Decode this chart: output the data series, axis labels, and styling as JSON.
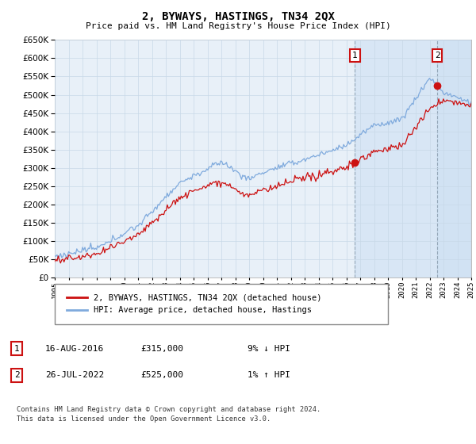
{
  "title": "2, BYWAYS, HASTINGS, TN34 2QX",
  "subtitle": "Price paid vs. HM Land Registry's House Price Index (HPI)",
  "hpi_color": "#7faadd",
  "price_color": "#cc1111",
  "grid_color": "#c8d8e8",
  "bg_color": "#ddeeff",
  "plot_bg": "#e8f0f8",
  "legend_label_price": "2, BYWAYS, HASTINGS, TN34 2QX (detached house)",
  "legend_label_hpi": "HPI: Average price, detached house, Hastings",
  "transaction1_label": "1",
  "transaction1_date": "16-AUG-2016",
  "transaction1_price": "£315,000",
  "transaction1_hpi": "9% ↓ HPI",
  "transaction1_year": 2016.62,
  "transaction1_value": 315000,
  "transaction2_label": "2",
  "transaction2_date": "26-JUL-2022",
  "transaction2_price": "£525,000",
  "transaction2_hpi": "1% ↑ HPI",
  "transaction2_year": 2022.56,
  "transaction2_value": 525000,
  "footer": "Contains HM Land Registry data © Crown copyright and database right 2024.\nThis data is licensed under the Open Government Licence v3.0."
}
